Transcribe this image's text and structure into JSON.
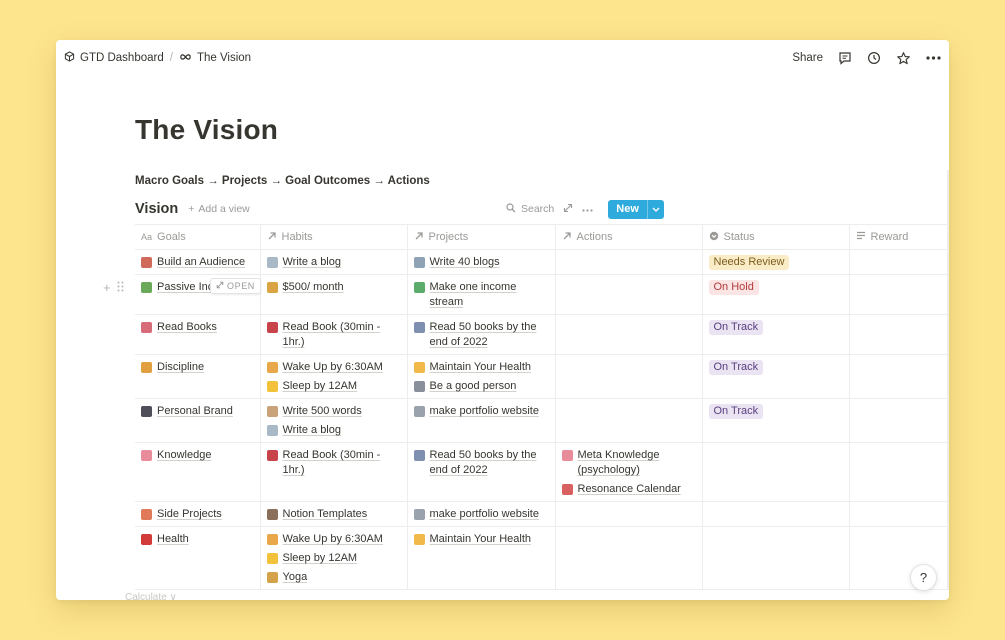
{
  "breadcrumb": [
    {
      "label": "GTD Dashboard",
      "icon": "cube-icon"
    },
    {
      "label": "The Vision",
      "icon": "infinity-icon"
    }
  ],
  "topbar": {
    "share_label": "Share"
  },
  "page": {
    "title": "The Vision",
    "subheading": "Macro Goals → Projects → Goal Outcomes → Actions"
  },
  "view": {
    "name": "Vision",
    "add_view_label": "Add a view",
    "search_label": "Search",
    "new_label": "New"
  },
  "columns": [
    {
      "label": "Goals",
      "icon": "Aa"
    },
    {
      "label": "Habits",
      "icon": "relation-arrow-icon"
    },
    {
      "label": "Projects",
      "icon": "relation-arrow-icon"
    },
    {
      "label": "Actions",
      "icon": "relation-arrow-icon"
    },
    {
      "label": "Status",
      "icon": "select-icon"
    },
    {
      "label": "Reward",
      "icon": "text-lines-icon"
    }
  ],
  "hover_row": {
    "open_label": "OPEN"
  },
  "rows": [
    {
      "goal": {
        "label": "Build an Audience",
        "icon_color": "#d06a5a"
      },
      "habits": [
        {
          "label": "Write a blog",
          "icon_color": "#a9b9c8"
        }
      ],
      "projects": [
        {
          "label": "Write 40 blogs",
          "icon_color": "#8fa3b6"
        }
      ],
      "actions": [],
      "status": {
        "label": "Needs Review",
        "bg": "#fbecc8",
        "fg": "#7a5d1a"
      }
    },
    {
      "goal": {
        "label": "Passive Income",
        "display": "Passive Inc",
        "icon_color": "#6aa85a"
      },
      "habits": [
        {
          "label": "$500/ month",
          "icon_color": "#d9a441"
        }
      ],
      "projects": [
        {
          "label": "Make one income stream",
          "icon_color": "#5bab6a"
        }
      ],
      "actions": [],
      "status": {
        "label": "On Hold",
        "bg": "#fbe4e4",
        "fg": "#b23b3b"
      }
    },
    {
      "goal": {
        "label": "Read Books",
        "icon_color": "#d76b7a"
      },
      "habits": [
        {
          "label": "Read Book (30min - 1hr.)",
          "icon_color": "#c9434b"
        }
      ],
      "projects": [
        {
          "label": "Read 50 books by the end of 2022",
          "icon_color": "#7f8fb2"
        }
      ],
      "actions": [],
      "status": {
        "label": "On Track",
        "bg": "#eae4f2",
        "fg": "#5b3e80"
      }
    },
    {
      "goal": {
        "label": "Discipline",
        "icon_color": "#e0a040"
      },
      "habits": [
        {
          "label": "Wake Up by 6:30AM",
          "icon_color": "#e8a84a"
        },
        {
          "label": "Sleep by 12AM",
          "icon_color": "#f2c23a"
        }
      ],
      "projects": [
        {
          "label": "Maintain Your Health",
          "icon_color": "#f0b94a"
        },
        {
          "label": "Be a good person",
          "icon_color": "#8a8f9c"
        }
      ],
      "actions": [],
      "status": {
        "label": "On Track",
        "bg": "#eae4f2",
        "fg": "#5b3e80"
      }
    },
    {
      "goal": {
        "label": "Personal Brand",
        "icon_color": "#4f4f5a"
      },
      "habits": [
        {
          "label": "Write 500 words",
          "icon_color": "#c9a27a"
        },
        {
          "label": "Write a blog",
          "icon_color": "#a9b9c8"
        }
      ],
      "projects": [
        {
          "label": "make portfolio website",
          "icon_color": "#9aa3ad"
        }
      ],
      "actions": [],
      "status": {
        "label": "On Track",
        "bg": "#eae4f2",
        "fg": "#5b3e80"
      }
    },
    {
      "goal": {
        "label": "Knowledge",
        "icon_color": "#e88b9a"
      },
      "habits": [
        {
          "label": "Read Book (30min - 1hr.)",
          "icon_color": "#c9434b"
        }
      ],
      "projects": [
        {
          "label": "Read 50 books by the end of 2022",
          "icon_color": "#7f8fb2"
        }
      ],
      "actions": [
        {
          "label": "Meta Knowledge (psychology)",
          "icon_color": "#e88b9a"
        },
        {
          "label": "Resonance Calendar",
          "icon_color": "#d86060"
        }
      ],
      "status": null
    },
    {
      "goal": {
        "label": "Side Projects",
        "icon_color": "#e07a5a"
      },
      "habits": [
        {
          "label": "Notion Templates",
          "icon_color": "#8a6f5a"
        }
      ],
      "projects": [
        {
          "label": "make portfolio website",
          "icon_color": "#9aa3ad"
        }
      ],
      "actions": [],
      "status": null
    },
    {
      "goal": {
        "label": "Health",
        "icon_color": "#d23a3a"
      },
      "habits": [
        {
          "label": "Wake Up by 6:30AM",
          "icon_color": "#e8a84a"
        },
        {
          "label": "Sleep by 12AM",
          "icon_color": "#f2c23a"
        },
        {
          "label": "Yoga",
          "icon_color": "#d4a24a"
        }
      ],
      "projects": [
        {
          "label": "Maintain Your Health",
          "icon_color": "#f0b94a"
        }
      ],
      "actions": [],
      "status": null
    }
  ],
  "footer": {
    "calculate_label": "Calculate ∨"
  },
  "help_label": "?"
}
